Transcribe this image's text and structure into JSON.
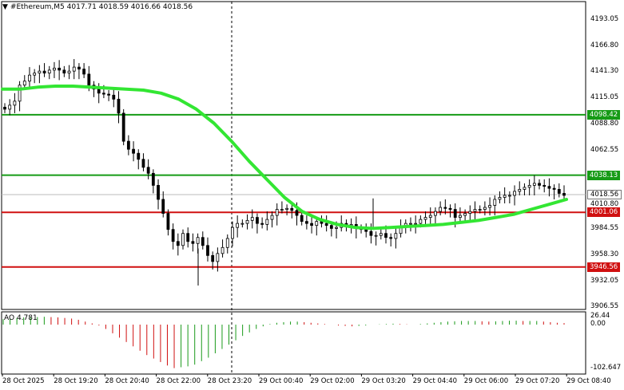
{
  "header": {
    "symbol_line": "#Ethereum,M5  4017.71 4018.59 4016.66 4018.56",
    "icon": "triangle-down-icon"
  },
  "price_axis": {
    "labels": [
      "4193.05",
      "4166.80",
      "4141.30",
      "4115.05",
      "4088.80",
      "4062.55",
      "3984.55",
      "3958.30",
      "3932.05",
      "3906.55"
    ],
    "label_values": [
      4193.05,
      4166.8,
      4141.3,
      4115.05,
      4088.8,
      4062.55,
      3984.55,
      3958.3,
      3932.05,
      3906.55
    ],
    "tick_4010": "4010.80",
    "tick_4010_value": 4010.8
  },
  "levels": [
    {
      "label": "4098.42",
      "value": 4098.42,
      "color": "#169b16",
      "kind": "green"
    },
    {
      "label": "4038.13",
      "value": 4038.13,
      "color": "#169b16",
      "kind": "green"
    },
    {
      "label": "4001.06",
      "value": 4001.06,
      "color": "#d01010",
      "kind": "red"
    },
    {
      "label": "3946.56",
      "value": 3946.56,
      "color": "#d01010",
      "kind": "red"
    }
  ],
  "current_price": {
    "label": "4018.56",
    "value": 4018.56
  },
  "time_axis": {
    "labels": [
      "28 Oct 2025",
      "28 Oct 19:20",
      "28 Oct 20:40",
      "28 Oct 22:00",
      "28 Oct 23:20",
      "29 Oct 00:40",
      "29 Oct 02:00",
      "29 Oct 03:20",
      "29 Oct 04:40",
      "29 Oct 06:00",
      "29 Oct 07:20",
      "29 Oct 08:40"
    ]
  },
  "oscillator": {
    "header": "AO 4.781",
    "axis_labels": [
      "26.44",
      "0.00",
      "-102.647"
    ],
    "axis_values": [
      26.44,
      0.0,
      -102.647
    ]
  },
  "colors": {
    "candle": "#000000",
    "moving_average": "#33e633",
    "ao_up": "#1a9a1a",
    "ao_down": "#d01010",
    "grid": "#000000"
  },
  "chart_data": {
    "type": "line",
    "title": "#Ethereum,M5",
    "ohlc_last": {
      "open": 4017.71,
      "high": 4018.59,
      "low": 4016.66,
      "close": 4018.56
    },
    "price_series_close": [
      4104,
      4108,
      4112,
      4128,
      4132,
      4138,
      4140,
      4142,
      4140,
      4143,
      4145,
      4143,
      4140,
      4142,
      4146,
      4144,
      4139,
      4128,
      4124,
      4120,
      4119,
      4118,
      4114,
      4100,
      4072,
      4064,
      4060,
      4054,
      4046,
      4040,
      4028,
      4014,
      4000,
      3984,
      3972,
      3968,
      3980,
      3972,
      3970,
      3976,
      3968,
      3958,
      3952,
      3960,
      3966,
      3975,
      3986,
      3990,
      3990,
      3993,
      3996,
      3990,
      3989,
      3994,
      3998,
      4004,
      4004,
      4005,
      4003,
      3998,
      3992,
      3990,
      3988,
      3992,
      3990,
      3988,
      3985,
      3986,
      3990,
      3988,
      3989,
      3985,
      3984,
      3982,
      3978,
      3978,
      3980,
      3976,
      3975,
      3980,
      3986,
      3990,
      3990,
      3990,
      3994,
      3996,
      3998,
      4002,
      4006,
      4005,
      4004,
      3996,
      3998,
      4000,
      4002,
      4004,
      4004,
      4006,
      4008,
      4014,
      4016,
      4018,
      4018,
      4022,
      4024,
      4026,
      4028,
      4030,
      4028,
      4027,
      4025,
      4024,
      4020,
      4018
    ],
    "moving_average": [
      4124,
      4124,
      4126,
      4127,
      4127,
      4126,
      4125,
      4124,
      4123,
      4120,
      4114,
      4104,
      4090,
      4072,
      4052,
      4034,
      4016,
      4002,
      3994,
      3989,
      3986,
      3985,
      3986,
      3987,
      3988,
      3989,
      3991,
      3993,
      3996,
      3999,
      4004,
      4009,
      4014
    ],
    "ylim": [
      3900,
      4200
    ],
    "levels": [
      4098.42,
      4038.13,
      4001.06,
      3946.56
    ],
    "ao_values": [
      18,
      20,
      22,
      24,
      24,
      25,
      26,
      25,
      24,
      22,
      20,
      16,
      10,
      4,
      -2,
      -10,
      -20,
      -30,
      -40,
      -50,
      -60,
      -70,
      -78,
      -86,
      -94,
      -100,
      -98,
      -96,
      -92,
      -84,
      -76,
      -66,
      -56,
      -46,
      -36,
      -26,
      -18,
      -10,
      -4,
      2,
      6,
      8,
      10,
      10,
      8,
      6,
      4,
      2,
      0,
      -2,
      -3,
      -4,
      -3,
      -2,
      0,
      1,
      2,
      3,
      2,
      1,
      0,
      2,
      4,
      6,
      8,
      10,
      11,
      12,
      12,
      12,
      11,
      10,
      11,
      12,
      13,
      13,
      12,
      12,
      12,
      10,
      8,
      6,
      5
    ],
    "ao_ylim": [
      -102.647,
      26.44
    ]
  }
}
